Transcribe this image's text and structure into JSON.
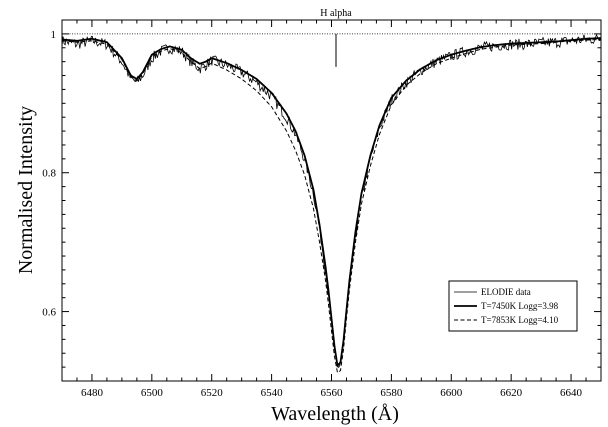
{
  "chart_data": {
    "type": "line",
    "title": "",
    "xlabel": "Wavelength (Å)",
    "ylabel": "Normalised Intensity",
    "xlim": [
      6470,
      6650
    ],
    "ylim": [
      0.5,
      1.02
    ],
    "x_ticks": [
      6480,
      6500,
      6520,
      6540,
      6560,
      6580,
      6600,
      6620,
      6640
    ],
    "y_ticks": [
      0.6,
      0.8,
      1
    ],
    "x_tick_labels": [
      "6480",
      "6500",
      "6520",
      "6540",
      "6560",
      "6580",
      "6600",
      "6620",
      "6640"
    ],
    "y_tick_labels": [
      "0.6",
      "0.8",
      "1"
    ],
    "grid": false,
    "legend_position": "bottom-right",
    "reference_line": {
      "y": 1.0,
      "style": "dotted"
    },
    "annotation": {
      "text": "H alpha",
      "x": 6561.5
    },
    "series": [
      {
        "name": "ELODIE data",
        "style": "thin-noisy",
        "x": [
          6470,
          6475,
          6480,
          6485,
          6490,
          6493,
          6495,
          6497,
          6500,
          6503,
          6506,
          6510,
          6513,
          6516,
          6518,
          6520,
          6525,
          6530,
          6535,
          6540,
          6545,
          6548,
          6551,
          6554,
          6556,
          6558,
          6559,
          6560,
          6561,
          6562,
          6563,
          6564,
          6565,
          6566,
          6568,
          6570,
          6573,
          6576,
          6580,
          6585,
          6590,
          6595,
          6600,
          6605,
          6610,
          6615,
          6620,
          6625,
          6630,
          6635,
          6640,
          6645,
          6650
        ],
        "y": [
          0.99,
          0.985,
          0.99,
          0.985,
          0.96,
          0.935,
          0.93,
          0.94,
          0.965,
          0.975,
          0.98,
          0.975,
          0.96,
          0.95,
          0.955,
          0.962,
          0.955,
          0.945,
          0.93,
          0.91,
          0.88,
          0.855,
          0.82,
          0.77,
          0.72,
          0.66,
          0.625,
          0.585,
          0.545,
          0.52,
          0.525,
          0.555,
          0.6,
          0.64,
          0.71,
          0.765,
          0.82,
          0.865,
          0.905,
          0.93,
          0.948,
          0.96,
          0.968,
          0.975,
          0.98,
          0.983,
          0.985,
          0.985,
          0.987,
          0.988,
          0.99,
          0.992,
          0.993
        ]
      },
      {
        "name": "T=7450K Logg=3.98",
        "style": "thick-solid",
        "x": [
          6470,
          6475,
          6480,
          6485,
          6490,
          6493,
          6495,
          6497,
          6500,
          6503,
          6506,
          6510,
          6513,
          6516,
          6518,
          6520,
          6525,
          6530,
          6535,
          6540,
          6545,
          6548,
          6551,
          6554,
          6556,
          6558,
          6559,
          6560,
          6561,
          6562,
          6563,
          6564,
          6565,
          6566,
          6568,
          6570,
          6573,
          6576,
          6580,
          6585,
          6590,
          6595,
          6600,
          6605,
          6610,
          6615,
          6620,
          6625,
          6630,
          6635,
          6640,
          6645,
          6650
        ],
        "y": [
          0.992,
          0.99,
          0.993,
          0.988,
          0.965,
          0.94,
          0.935,
          0.945,
          0.97,
          0.978,
          0.982,
          0.977,
          0.965,
          0.957,
          0.96,
          0.965,
          0.958,
          0.948,
          0.935,
          0.915,
          0.885,
          0.86,
          0.825,
          0.775,
          0.725,
          0.665,
          0.63,
          0.59,
          0.55,
          0.522,
          0.527,
          0.558,
          0.602,
          0.645,
          0.715,
          0.77,
          0.825,
          0.868,
          0.908,
          0.933,
          0.95,
          0.962,
          0.97,
          0.976,
          0.981,
          0.984,
          0.986,
          0.987,
          0.988,
          0.989,
          0.991,
          0.993,
          0.994
        ]
      },
      {
        "name": "T=7853K Logg=4.10",
        "style": "dashed",
        "x": [
          6470,
          6475,
          6480,
          6485,
          6490,
          6493,
          6495,
          6497,
          6500,
          6503,
          6506,
          6510,
          6513,
          6516,
          6518,
          6520,
          6525,
          6530,
          6535,
          6540,
          6545,
          6548,
          6551,
          6554,
          6556,
          6558,
          6559,
          6560,
          6561,
          6562,
          6563,
          6564,
          6565,
          6566,
          6568,
          6570,
          6573,
          6576,
          6580,
          6585,
          6590,
          6595,
          6600,
          6605,
          6610,
          6615,
          6620,
          6625,
          6630,
          6635,
          6640,
          6645,
          6650
        ],
        "y": [
          0.99,
          0.988,
          0.99,
          0.985,
          0.963,
          0.938,
          0.932,
          0.943,
          0.967,
          0.975,
          0.979,
          0.973,
          0.96,
          0.95,
          0.953,
          0.958,
          0.948,
          0.935,
          0.918,
          0.895,
          0.86,
          0.832,
          0.797,
          0.748,
          0.7,
          0.645,
          0.61,
          0.572,
          0.535,
          0.512,
          0.515,
          0.545,
          0.59,
          0.632,
          0.7,
          0.755,
          0.81,
          0.855,
          0.898,
          0.926,
          0.944,
          0.957,
          0.965,
          0.972,
          0.978,
          0.981,
          0.984,
          0.985,
          0.986,
          0.988,
          0.99,
          0.991,
          0.992
        ]
      }
    ]
  }
}
